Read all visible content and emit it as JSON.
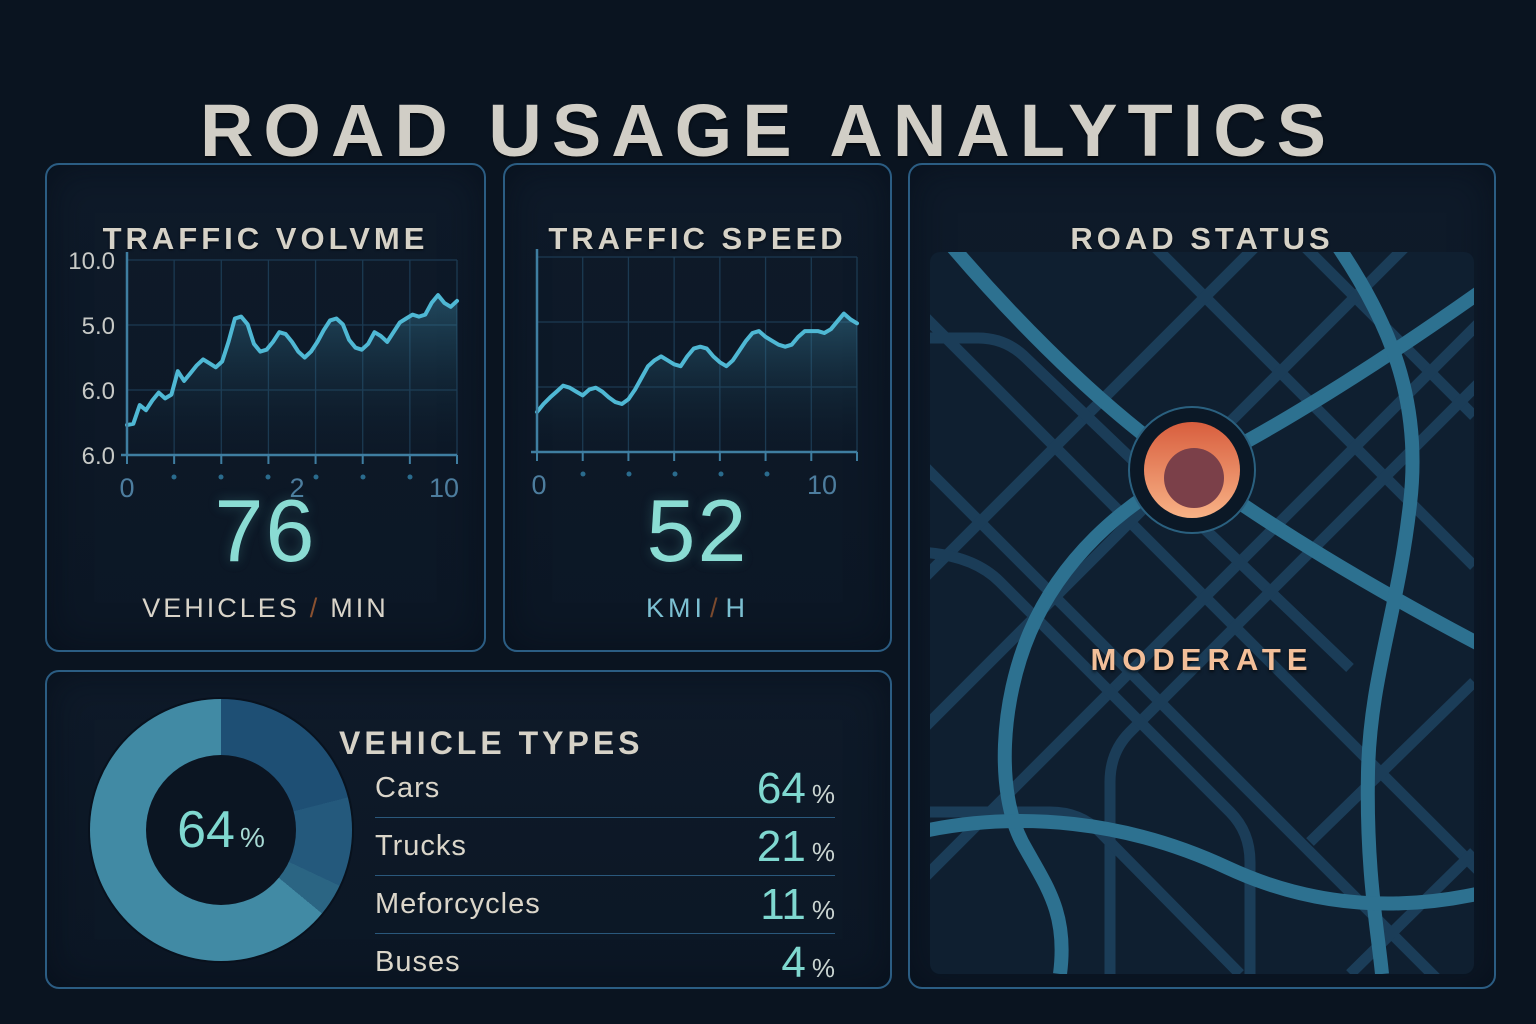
{
  "title": "ROAD USAGE ANALYTICS",
  "colors": {
    "background": "#0a1420",
    "panel_border": "#2b5d83",
    "heading_text": "#d1cec6",
    "line_accent": "#4fb8d4",
    "value_teal": "#8adcd3",
    "status_orange": "#e06a45",
    "status_label_peach": "#f3bf99"
  },
  "panels": {
    "traffic_volume": {
      "title": "TRAFFIC VOLVME",
      "value": "76",
      "unit_parts": [
        "VEHICLES",
        "/",
        "MIN"
      ]
    },
    "traffic_speed": {
      "title": "TRAFFIC SPEED",
      "value": "52",
      "unit_parts": [
        "KMI",
        "/",
        "H"
      ]
    },
    "road_status": {
      "title": "ROAD STATUS",
      "status": "MODERATE"
    },
    "vehicle_types": {
      "title": "VEHICLE TYPES",
      "center_value": "64",
      "center_unit": "%",
      "rows": [
        {
          "label": "Cars",
          "value": "64",
          "unit": "%"
        },
        {
          "label": "Trucks",
          "value": "21",
          "unit": "%"
        },
        {
          "label": "Meforcycles",
          "value": "11",
          "unit": "%"
        },
        {
          "label": "Buses",
          "value": "4",
          "unit": "%"
        }
      ]
    }
  },
  "chart_data": [
    {
      "id": "traffic_volume",
      "type": "line",
      "title": "TRAFFIC VOLVME",
      "unit": "VEHICLES / MIN",
      "current_value": 76,
      "x_range": [
        0,
        10
      ],
      "y_range": [
        0,
        10
      ],
      "grid": true,
      "y_tick_labels": [
        "10.0",
        "5.0",
        "6.0",
        "6.0"
      ],
      "x_tick_labels": [
        "0",
        "2",
        "10"
      ],
      "y_values": [
        1.54,
        1.6,
        2.56,
        2.3,
        2.8,
        3.2,
        2.9,
        3.1,
        4.3,
        3.8,
        4.2,
        4.6,
        4.9,
        4.7,
        4.5,
        4.8,
        5.8,
        7.0,
        7.1,
        6.7,
        5.7,
        5.3,
        5.4,
        5.8,
        6.3,
        6.2,
        5.8,
        5.3,
        5.0,
        5.3,
        5.8,
        6.4,
        6.9,
        7.0,
        6.7,
        5.9,
        5.5,
        5.4,
        5.7,
        6.3,
        6.1,
        5.8,
        6.3,
        6.8,
        7.0,
        7.2,
        7.1,
        7.2,
        7.8,
        8.2,
        7.8,
        7.6,
        7.9
      ]
    },
    {
      "id": "traffic_speed",
      "type": "line",
      "title": "TRAFFIC SPEED",
      "unit": "KMI/H",
      "current_value": 52,
      "x_range": [
        0,
        10
      ],
      "y_range": [
        0,
        10
      ],
      "grid": true,
      "x_tick_labels": [
        "0",
        "10"
      ],
      "y_values": [
        2.05,
        2.46,
        2.8,
        3.1,
        3.4,
        3.3,
        3.1,
        2.9,
        3.2,
        3.3,
        3.1,
        2.8,
        2.56,
        2.46,
        2.7,
        3.2,
        3.8,
        4.4,
        4.7,
        4.9,
        4.7,
        4.5,
        4.4,
        4.9,
        5.3,
        5.4,
        5.3,
        4.9,
        4.6,
        4.4,
        4.7,
        5.2,
        5.7,
        6.1,
        6.2,
        5.9,
        5.7,
        5.5,
        5.4,
        5.5,
        5.9,
        6.2,
        6.2,
        6.2,
        6.1,
        6.3,
        6.7,
        7.1,
        6.8,
        6.6
      ]
    },
    {
      "id": "vehicle_types",
      "type": "donut",
      "title": "VEHICLE TYPES",
      "labels": [
        "Cars",
        "Trucks",
        "Meforcycles",
        "Buses"
      ],
      "values": [
        64,
        21,
        11,
        4
      ],
      "colors": [
        "#418aa4",
        "#1e4f74",
        "#24597c",
        "#2b6583"
      ],
      "center_label": "64%"
    },
    {
      "id": "road_status",
      "type": "status",
      "label": "MODERATE"
    }
  ]
}
